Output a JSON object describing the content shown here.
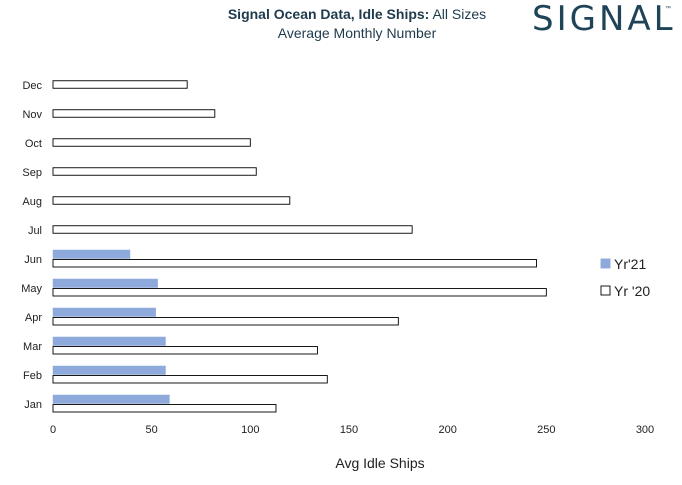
{
  "logo": {
    "text": "SIGNAL",
    "trademark": "™"
  },
  "chart_data": {
    "type": "bar",
    "orientation": "horizontal",
    "title_bold": "Signal Ocean Data, Idle Ships:",
    "title_rest": " All Sizes",
    "subtitle": "Average Monthly  Number",
    "xlabel": "Avg Idle Ships",
    "ylabel": "",
    "xlim": [
      0,
      300
    ],
    "x_ticks": [
      "0",
      "50",
      "100",
      "150",
      "200",
      "250",
      "300"
    ],
    "categories": [
      "Jan",
      "Feb",
      "Mar",
      "Apr",
      "May",
      "Jun",
      "Jul",
      "Aug",
      "Sep",
      "Oct",
      "Nov",
      "Dec"
    ],
    "series": [
      {
        "name": "Yr'21",
        "color": "#8ea9db",
        "style": "filled",
        "values": [
          59,
          57,
          57,
          52,
          53,
          39,
          null,
          null,
          null,
          null,
          null,
          null
        ]
      },
      {
        "name": "Yr '20",
        "color": "#ffffff",
        "style": "outline",
        "values": [
          113,
          139,
          134,
          175,
          250,
          245,
          182,
          120,
          103,
          100,
          82,
          68
        ]
      }
    ],
    "legend_position": "right",
    "grid": false
  }
}
